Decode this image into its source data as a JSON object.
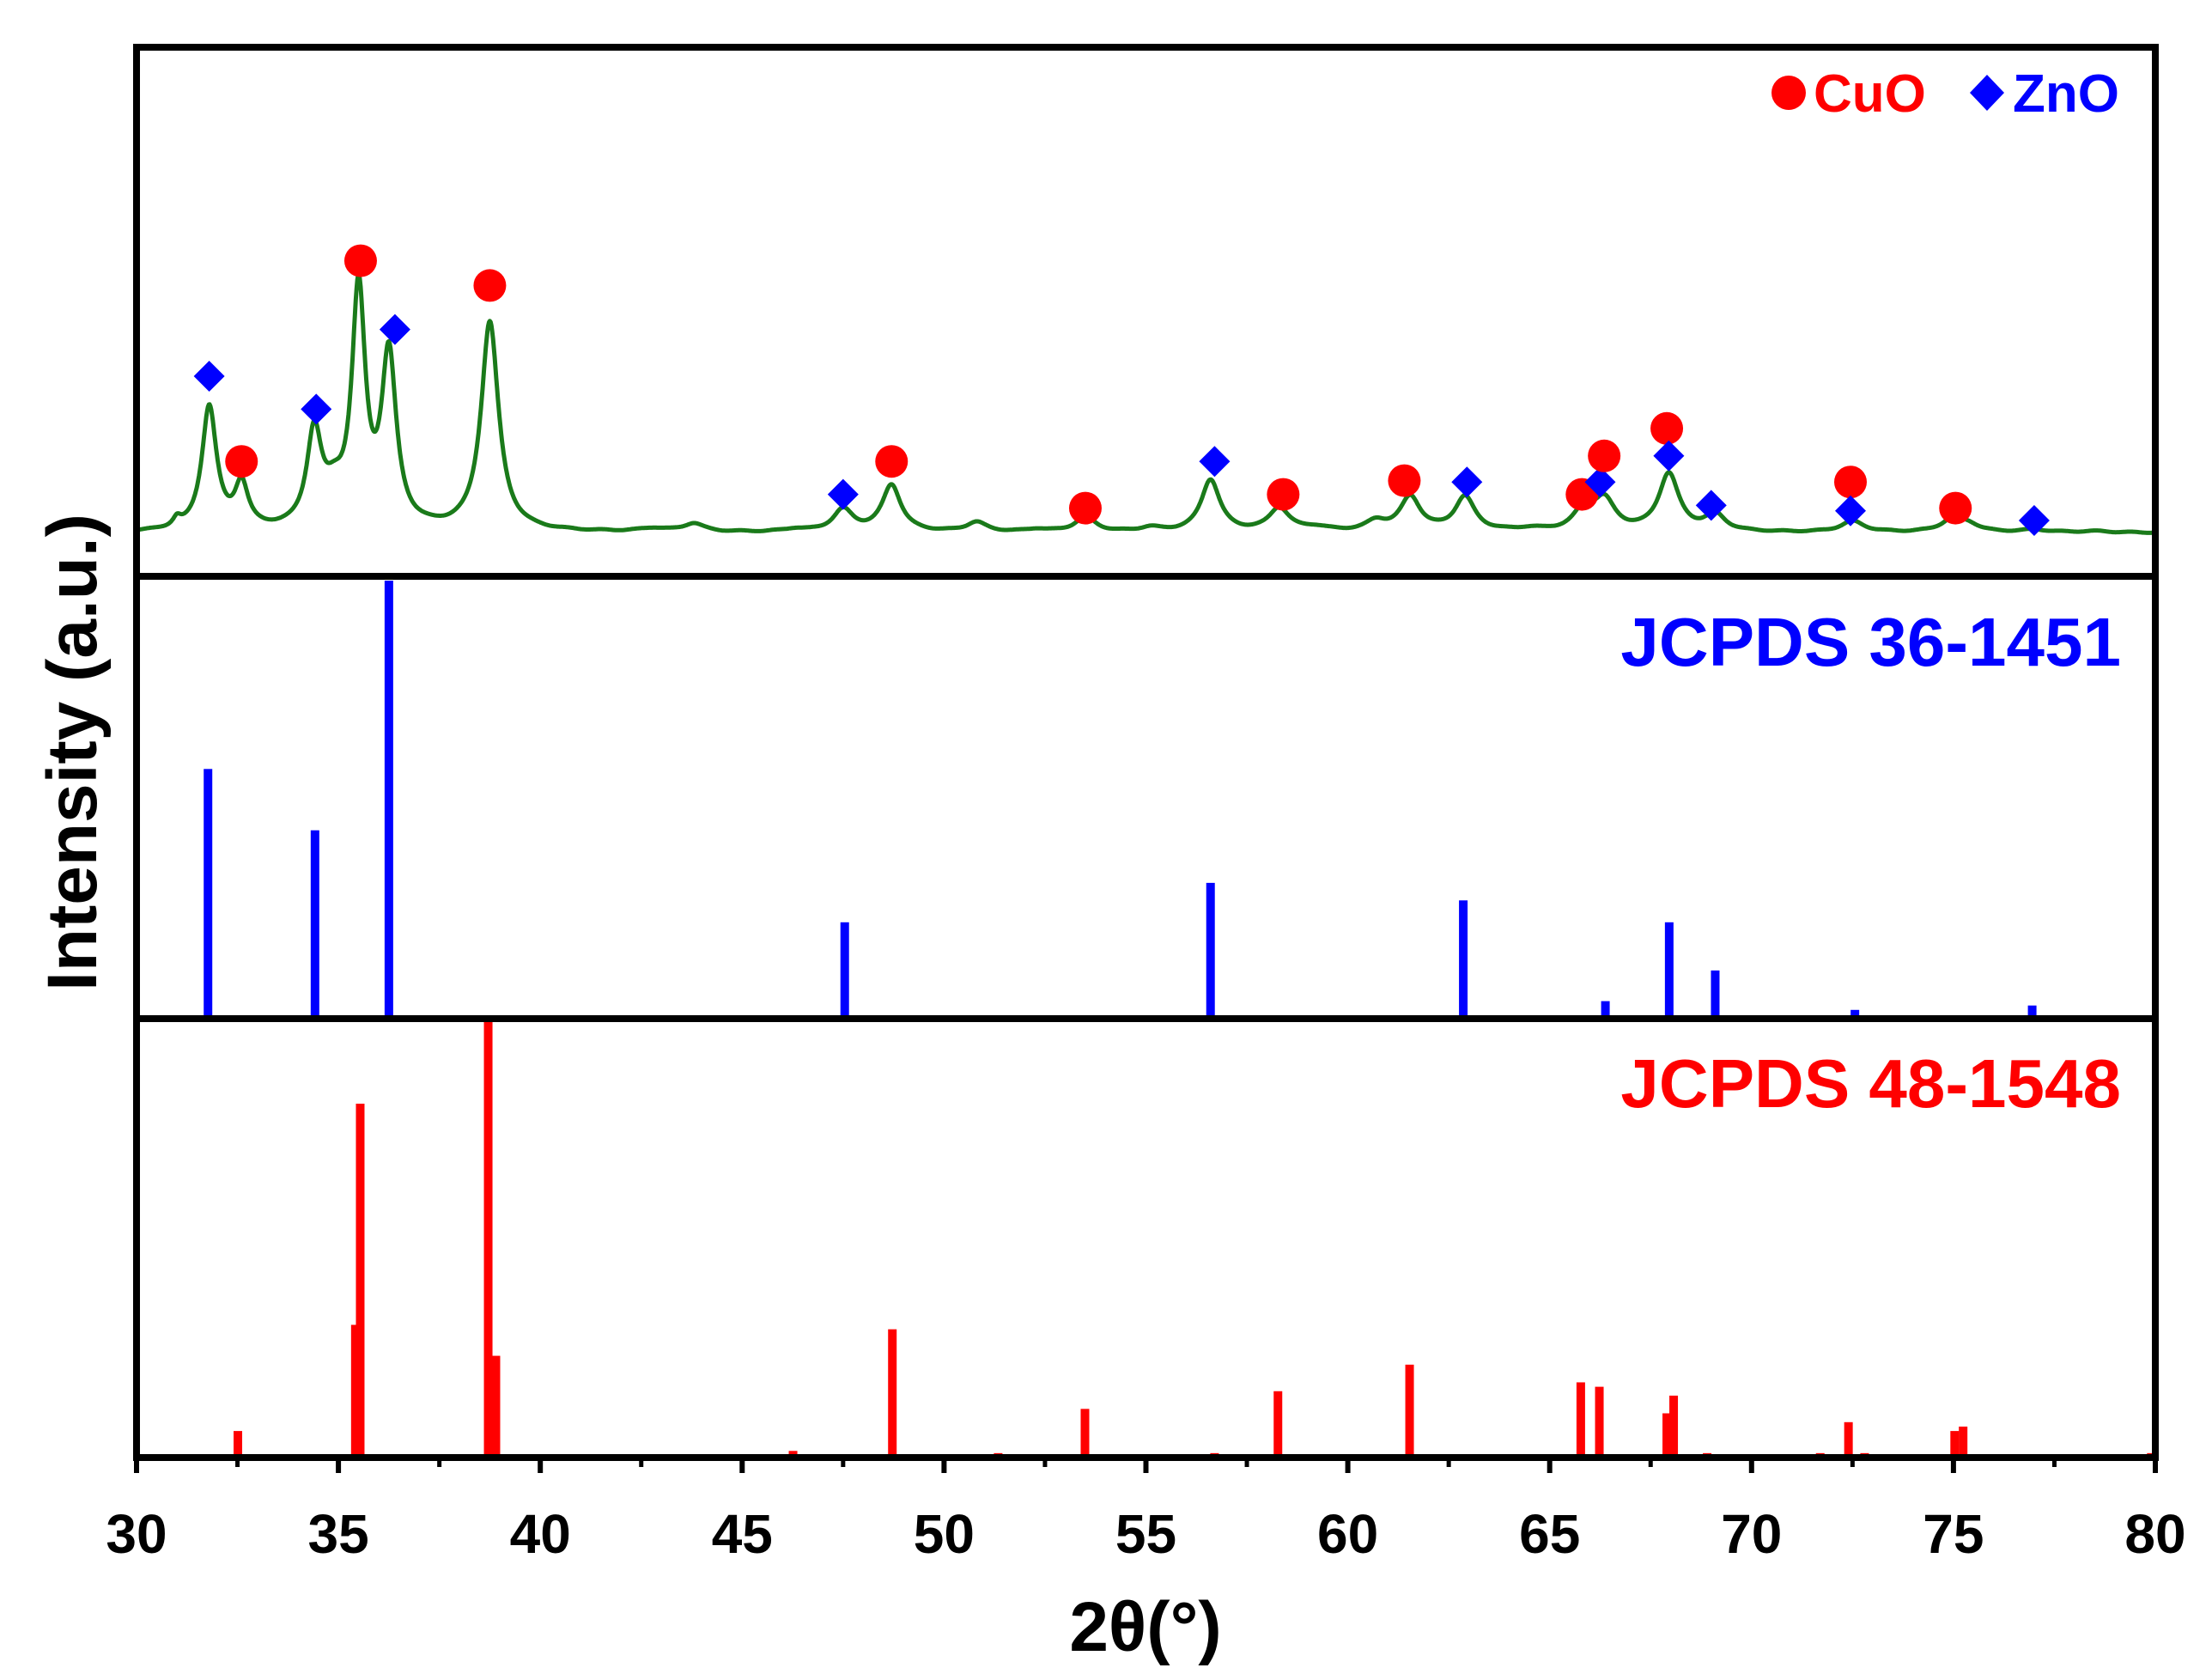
{
  "chart_data": {
    "type": "line",
    "title": "",
    "xlabel": "2θ(°)",
    "ylabel": "Intensity (a.u.)",
    "xlim": [
      30,
      80
    ],
    "xticks": [
      "30",
      "35",
      "40",
      "45",
      "50",
      "55",
      "60",
      "65",
      "70",
      "75",
      "80"
    ],
    "grid": false,
    "legend": {
      "placement": "top-right",
      "entries": [
        {
          "label": "CuO",
          "marker": "circle",
          "color": "#ff0000"
        },
        {
          "label": "ZnO",
          "marker": "diamond",
          "color": "#0000ff"
        }
      ]
    },
    "panels": [
      {
        "name": "experimental-pattern",
        "type": "line",
        "color": "#1a7a1a",
        "baseline": 3,
        "peaks": [
          [
            31.0,
            3,
            0.12
          ],
          [
            31.8,
            45,
            0.22
          ],
          [
            32.6,
            16,
            0.2
          ],
          [
            34.4,
            34,
            0.22
          ],
          [
            34.9,
            10,
            0.3
          ],
          [
            35.5,
            85,
            0.2
          ],
          [
            36.25,
            62,
            0.22
          ],
          [
            38.75,
            76,
            0.26
          ],
          [
            42.8,
            1.2,
            0.4
          ],
          [
            43.8,
            3,
            0.3
          ],
          [
            46.3,
            1,
            0.3
          ],
          [
            47.5,
            8,
            0.3
          ],
          [
            48.7,
            17,
            0.28
          ],
          [
            50.8,
            3.5,
            0.3
          ],
          [
            52.3,
            1,
            0.3
          ],
          [
            53.5,
            5.5,
            0.3
          ],
          [
            55.1,
            1.5,
            0.3
          ],
          [
            56.6,
            19,
            0.28
          ],
          [
            58.3,
            8.5,
            0.3
          ],
          [
            59.2,
            1.5,
            0.4
          ],
          [
            60.7,
            3.5,
            0.3
          ],
          [
            61.55,
            12.5,
            0.3
          ],
          [
            62.9,
            12.5,
            0.3
          ],
          [
            64.5,
            1,
            0.4
          ],
          [
            65.85,
            7.5,
            0.3
          ],
          [
            66.35,
            11,
            0.32
          ],
          [
            67.95,
            21,
            0.3
          ],
          [
            69.1,
            6,
            0.3
          ],
          [
            72.5,
            4,
            0.35
          ],
          [
            75.0,
            5,
            0.35
          ],
          [
            75.4,
            2,
            0.3
          ],
          [
            77.0,
            1,
            0.4
          ],
          [
            78.5,
            0.5,
            0.5
          ]
        ],
        "markers": [
          {
            "phase": "ZnO",
            "x": 31.8,
            "y": 60
          },
          {
            "phase": "CuO",
            "x": 32.6,
            "y": 29
          },
          {
            "phase": "ZnO",
            "x": 34.45,
            "y": 48
          },
          {
            "phase": "CuO",
            "x": 35.55,
            "y": 102
          },
          {
            "phase": "ZnO",
            "x": 36.4,
            "y": 77
          },
          {
            "phase": "CuO",
            "x": 38.75,
            "y": 93
          },
          {
            "phase": "ZnO",
            "x": 47.5,
            "y": 17
          },
          {
            "phase": "CuO",
            "x": 48.7,
            "y": 29
          },
          {
            "phase": "CuO",
            "x": 53.5,
            "y": 12
          },
          {
            "phase": "ZnO",
            "x": 56.7,
            "y": 29
          },
          {
            "phase": "CuO",
            "x": 58.4,
            "y": 17
          },
          {
            "phase": "CuO",
            "x": 61.4,
            "y": 22
          },
          {
            "phase": "ZnO",
            "x": 62.95,
            "y": 21.5
          },
          {
            "phase": "CuO",
            "x": 65.8,
            "y": 17
          },
          {
            "phase": "ZnO",
            "x": 66.25,
            "y": 21.5
          },
          {
            "phase": "CuO",
            "x": 66.35,
            "y": 31
          },
          {
            "phase": "CuO",
            "x": 67.9,
            "y": 41
          },
          {
            "phase": "ZnO",
            "x": 67.95,
            "y": 31
          },
          {
            "phase": "ZnO",
            "x": 69.0,
            "y": 13
          },
          {
            "phase": "CuO",
            "x": 72.45,
            "y": 21.5
          },
          {
            "phase": "ZnO",
            "x": 72.45,
            "y": 11
          },
          {
            "phase": "CuO",
            "x": 75.05,
            "y": 12
          },
          {
            "phase": "ZnO",
            "x": 77.0,
            "y": 7.5
          }
        ]
      },
      {
        "name": "reference-zno",
        "type": "stick",
        "label": "JCPDS 36-1451",
        "color": "#0000ff",
        "sticks": [
          {
            "x": 31.77,
            "y": 57
          },
          {
            "x": 34.42,
            "y": 43
          },
          {
            "x": 36.25,
            "y": 100
          },
          {
            "x": 47.54,
            "y": 22
          },
          {
            "x": 56.6,
            "y": 31
          },
          {
            "x": 62.86,
            "y": 27
          },
          {
            "x": 66.38,
            "y": 4
          },
          {
            "x": 67.96,
            "y": 22
          },
          {
            "x": 69.1,
            "y": 11
          },
          {
            "x": 72.56,
            "y": 2
          },
          {
            "x": 76.95,
            "y": 3
          }
        ]
      },
      {
        "name": "reference-cuo",
        "type": "stick",
        "label": "JCPDS 48-1548",
        "color": "#ff0000",
        "sticks": [
          {
            "x": 32.51,
            "y": 6
          },
          {
            "x": 35.42,
            "y": 30
          },
          {
            "x": 35.54,
            "y": 80
          },
          {
            "x": 38.71,
            "y": 100
          },
          {
            "x": 38.9,
            "y": 23
          },
          {
            "x": 46.26,
            "y": 1.5
          },
          {
            "x": 48.72,
            "y": 29
          },
          {
            "x": 51.34,
            "y": 1
          },
          {
            "x": 53.49,
            "y": 11
          },
          {
            "x": 56.7,
            "y": 1
          },
          {
            "x": 58.27,
            "y": 15
          },
          {
            "x": 61.53,
            "y": 21
          },
          {
            "x": 65.77,
            "y": 17
          },
          {
            "x": 66.23,
            "y": 16
          },
          {
            "x": 67.9,
            "y": 10
          },
          {
            "x": 68.07,
            "y": 14
          },
          {
            "x": 68.9,
            "y": 1
          },
          {
            "x": 71.7,
            "y": 1
          },
          {
            "x": 72.4,
            "y": 8
          },
          {
            "x": 72.8,
            "y": 1
          },
          {
            "x": 75.03,
            "y": 6
          },
          {
            "x": 75.24,
            "y": 7
          },
          {
            "x": 79.9,
            "y": 1
          }
        ]
      }
    ]
  }
}
